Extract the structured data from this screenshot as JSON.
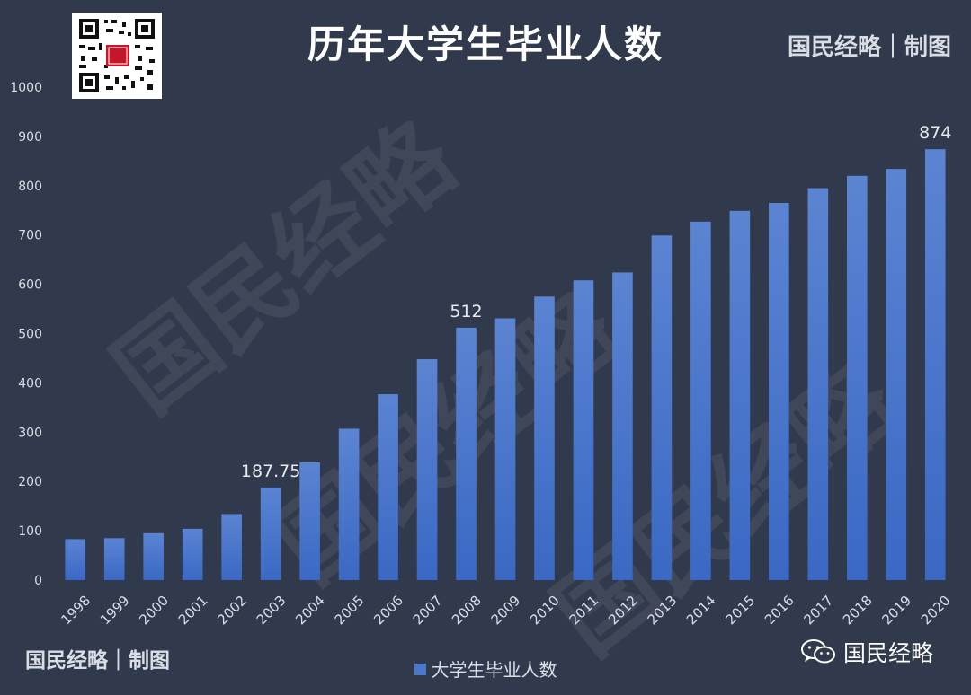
{
  "header": {
    "title": "历年大学生毕业人数",
    "brand": "国民经略｜制图"
  },
  "footer": {
    "brand": "国民经略｜制图",
    "account": "国民经略"
  },
  "watermark_text": "国民经略",
  "chart_data": {
    "type": "bar",
    "categories": [
      "1998",
      "1999",
      "2000",
      "2001",
      "2002",
      "2003",
      "2004",
      "2005",
      "2006",
      "2007",
      "2008",
      "2009",
      "2010",
      "2011",
      "2012",
      "2013",
      "2014",
      "2015",
      "2016",
      "2017",
      "2018",
      "2019",
      "2020"
    ],
    "series": [
      {
        "name": "大学生毕业人数",
        "values": [
          83,
          85,
          95,
          104,
          134,
          187.75,
          239,
          307,
          377,
          448,
          512,
          531,
          575,
          608,
          624,
          699,
          727,
          749,
          765,
          795,
          820,
          834,
          874
        ],
        "color": "#4a78cd"
      }
    ],
    "data_labels": [
      {
        "category": "2003",
        "text": "187.75"
      },
      {
        "category": "2008",
        "text": "512"
      },
      {
        "category": "2020",
        "text": "874"
      }
    ],
    "ylim": [
      0,
      1000
    ],
    "yticks": [
      0,
      100,
      200,
      300,
      400,
      500,
      600,
      700,
      800,
      900,
      1000
    ],
    "grid": false,
    "legend_position": "bottom",
    "background": "#313a4c"
  }
}
